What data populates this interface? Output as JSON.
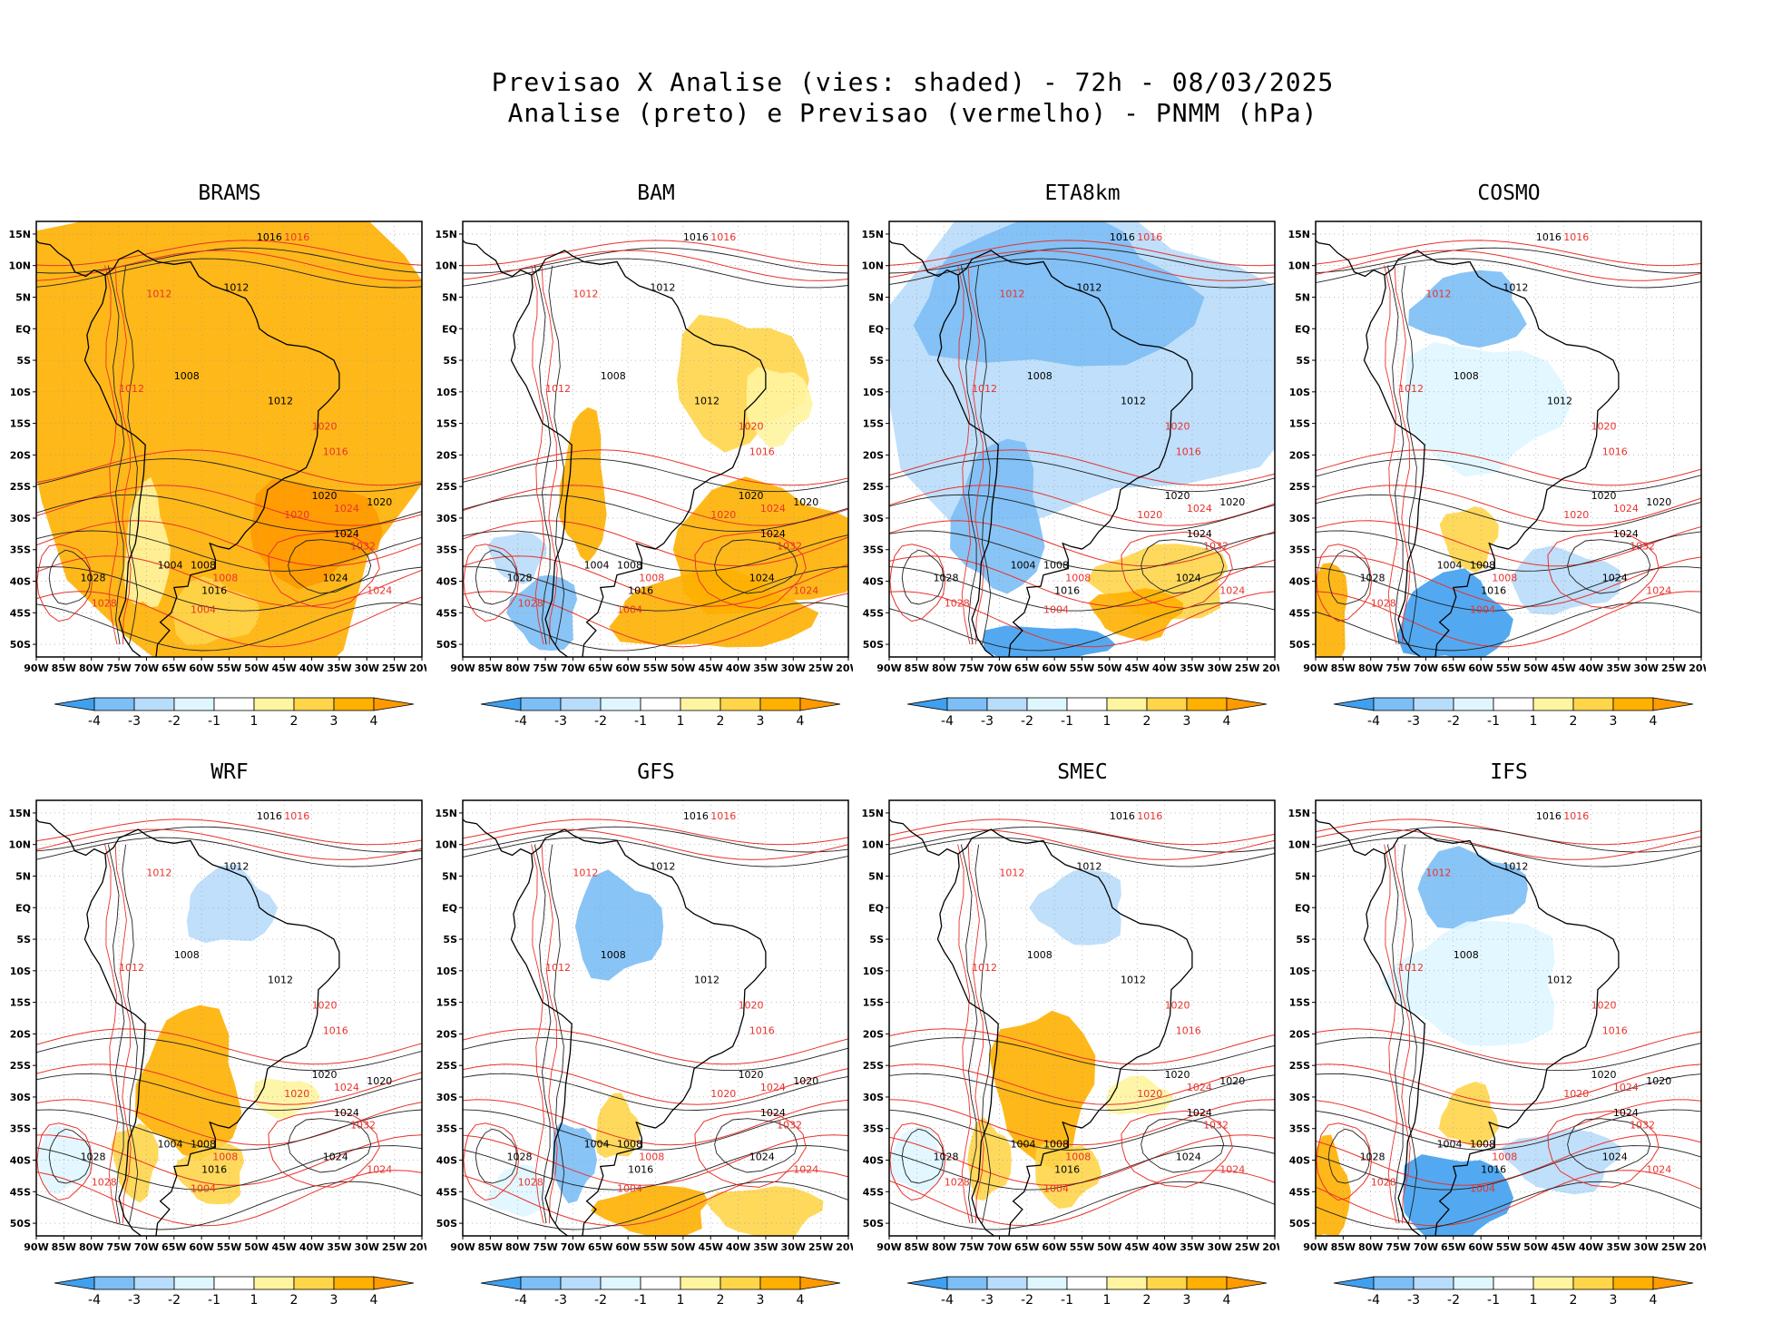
{
  "title": {
    "line1": "Previsao X Analise (vies: shaded) - 72h - 08/03/2025",
    "line2": "Analise (preto) e Previsao (vermelho) - PNMM (hPa)"
  },
  "lat_ticks": [
    "15N",
    "10N",
    "5N",
    "EQ",
    "5S",
    "10S",
    "15S",
    "20S",
    "25S",
    "30S",
    "35S",
    "40S",
    "45S",
    "50S"
  ],
  "lon_ticks": [
    "90W",
    "85W",
    "80W",
    "75W",
    "70W",
    "65W",
    "60W",
    "55W",
    "50W",
    "45W",
    "40W",
    "35W",
    "30W",
    "25W",
    "20W"
  ],
  "colorbar": {
    "labels": [
      "-4",
      "-3",
      "-2",
      "-1",
      "1",
      "2",
      "3",
      "4"
    ],
    "colors": [
      "#3fa0f0",
      "#7cbef5",
      "#b8dcfb",
      "#dff6ff",
      "#ffffff",
      "#fff4a0",
      "#ffd54a",
      "#ffb000",
      "#ff9a00"
    ]
  },
  "panels": [
    {
      "name": "BRAMS",
      "bias": "warm-all"
    },
    {
      "name": "BAM",
      "bias": "warm-east"
    },
    {
      "name": "ETA8km",
      "bias": "cold-all"
    },
    {
      "name": "COSMO",
      "bias": "cold-south"
    },
    {
      "name": "WRF",
      "bias": "warm-center"
    },
    {
      "name": "GFS",
      "bias": "mixed-south"
    },
    {
      "name": "SMEC",
      "bias": "warm-center"
    },
    {
      "name": "IFS",
      "bias": "cold-south"
    }
  ],
  "contour_labels": {
    "analysis": [
      "1016",
      "1012",
      "1008",
      "1004",
      "1020",
      "1024",
      "1028",
      "1016",
      "1012",
      "1020",
      "1024",
      "1008"
    ],
    "forecast": [
      "1016",
      "1012",
      "1020",
      "1024",
      "1008",
      "1004",
      "1028",
      "1012",
      "1016",
      "1020",
      "1024",
      "1032"
    ]
  }
}
